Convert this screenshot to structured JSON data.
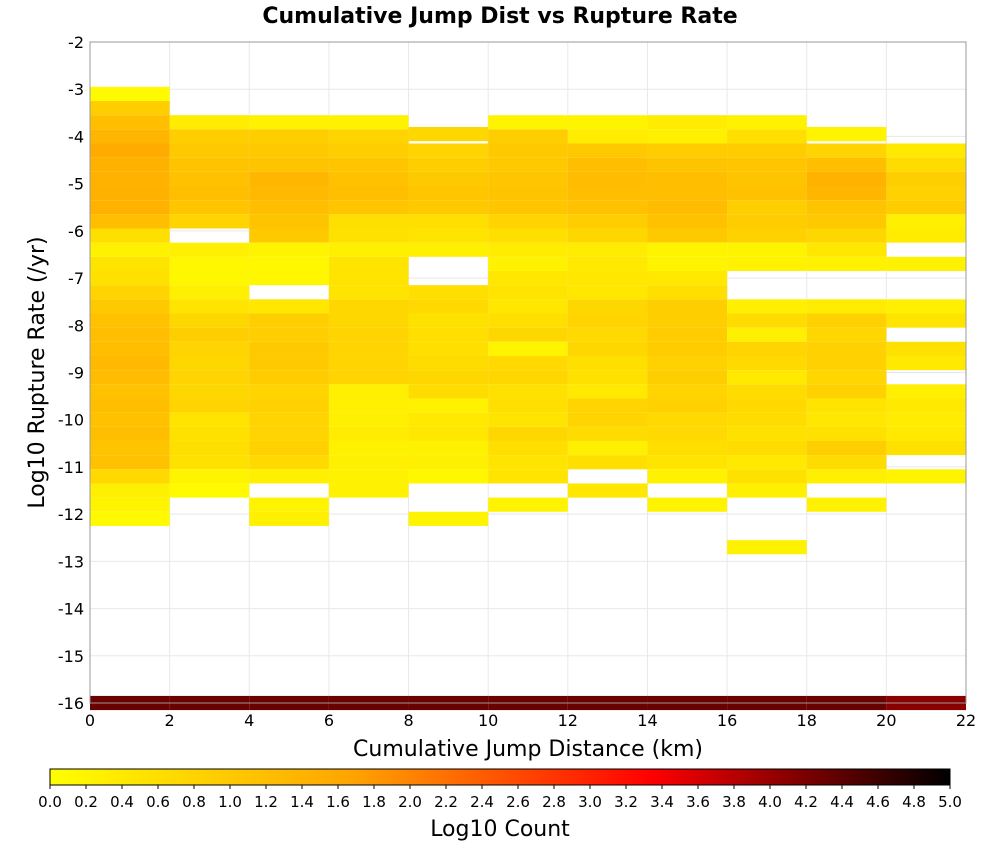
{
  "chart_data": {
    "type": "heatmap",
    "title": "Cumulative Jump Dist vs Rupture Rate",
    "xlabel": "Cumulative Jump Distance (km)",
    "ylabel": "Log10 Rupture Rate (/yr)",
    "xlim": [
      0,
      22
    ],
    "ylim": [
      -16,
      -2
    ],
    "x_ticks": [
      "0",
      "2",
      "4",
      "6",
      "8",
      "10",
      "12",
      "14",
      "16",
      "18",
      "20",
      "22"
    ],
    "y_ticks": [
      "-2",
      "-3",
      "-4",
      "-5",
      "-6",
      "-7",
      "-8",
      "-9",
      "-10",
      "-11",
      "-12",
      "-13",
      "-14",
      "-15",
      "-16"
    ],
    "x_bin_width": 2,
    "y_bin_height": 0.3,
    "grid": true,
    "colorbar": {
      "label": "Log10 Count",
      "range": [
        0,
        5
      ],
      "colors": [
        "#ffff00",
        "#ffa500",
        "#ff0000",
        "#000000"
      ],
      "ticks": [
        "0.0",
        "0.2",
        "0.4",
        "0.6",
        "0.8",
        "1.0",
        "1.2",
        "1.4",
        "1.6",
        "1.8",
        "2.0",
        "2.2",
        "2.4",
        "2.6",
        "2.8",
        "3.0",
        "3.2",
        "3.4",
        "3.6",
        "3.8",
        "4.0",
        "4.2",
        "4.4",
        "4.6",
        "4.8",
        "5.0"
      ]
    },
    "columns": [
      {
        "x": 0,
        "cells": [
          [
            -3.1,
            0.1
          ],
          [
            -3.4,
            0.9
          ],
          [
            -3.7,
            1.2
          ],
          [
            -4.0,
            1.35
          ],
          [
            -4.3,
            1.55
          ],
          [
            -4.6,
            1.45
          ],
          [
            -4.9,
            1.4
          ],
          [
            -5.2,
            1.45
          ],
          [
            -5.5,
            1.4
          ],
          [
            -5.8,
            1.2
          ],
          [
            -6.1,
            0.6
          ],
          [
            -6.4,
            0.25
          ],
          [
            -6.7,
            0.5
          ],
          [
            -7.0,
            0.55
          ],
          [
            -7.3,
            0.8
          ],
          [
            -7.6,
            1.0
          ],
          [
            -7.9,
            1.15
          ],
          [
            -8.2,
            1.2
          ],
          [
            -8.5,
            1.2
          ],
          [
            -8.8,
            1.3
          ],
          [
            -9.1,
            1.25
          ],
          [
            -9.4,
            1.15
          ],
          [
            -9.7,
            1.2
          ],
          [
            -10.0,
            1.15
          ],
          [
            -10.3,
            1.2
          ],
          [
            -10.6,
            1.1
          ],
          [
            -10.9,
            1.15
          ],
          [
            -11.2,
            0.7
          ],
          [
            -11.5,
            0.3
          ],
          [
            -11.8,
            0.2
          ],
          [
            -12.1,
            0.1
          ],
          [
            -16.0,
            4.3
          ]
        ]
      },
      {
        "x": 2,
        "cells": [
          [
            -3.7,
            0.35
          ],
          [
            -4.0,
            0.9
          ],
          [
            -4.3,
            1.0
          ],
          [
            -4.6,
            1.1
          ],
          [
            -4.9,
            1.15
          ],
          [
            -5.2,
            1.2
          ],
          [
            -5.5,
            1.05
          ],
          [
            -5.8,
            0.8
          ],
          [
            -6.4,
            0.3
          ],
          [
            -6.7,
            0.15
          ],
          [
            -7.0,
            0.15
          ],
          [
            -7.3,
            0.3
          ],
          [
            -7.6,
            0.5
          ],
          [
            -7.9,
            0.75
          ],
          [
            -8.2,
            0.9
          ],
          [
            -8.5,
            0.8
          ],
          [
            -8.8,
            0.75
          ],
          [
            -9.1,
            0.8
          ],
          [
            -9.4,
            0.75
          ],
          [
            -9.7,
            0.8
          ],
          [
            -10.0,
            0.5
          ],
          [
            -10.3,
            0.55
          ],
          [
            -10.6,
            0.6
          ],
          [
            -10.9,
            0.55
          ],
          [
            -11.2,
            0.2
          ],
          [
            -11.5,
            0.1
          ],
          [
            -16.0,
            4.3
          ]
        ]
      },
      {
        "x": 4,
        "cells": [
          [
            -3.7,
            0.25
          ],
          [
            -4.0,
            0.9
          ],
          [
            -4.3,
            1.0
          ],
          [
            -4.6,
            1.1
          ],
          [
            -4.9,
            1.35
          ],
          [
            -5.2,
            1.3
          ],
          [
            -5.5,
            1.2
          ],
          [
            -5.8,
            1.1
          ],
          [
            -6.1,
            1.0
          ],
          [
            -6.4,
            0.2
          ],
          [
            -6.7,
            0.15
          ],
          [
            -7.0,
            0.15
          ],
          [
            -7.6,
            0.45
          ],
          [
            -7.9,
            0.9
          ],
          [
            -8.2,
            0.9
          ],
          [
            -8.5,
            1.0
          ],
          [
            -8.8,
            1.0
          ],
          [
            -9.1,
            0.95
          ],
          [
            -9.4,
            0.8
          ],
          [
            -9.7,
            0.85
          ],
          [
            -10.0,
            0.8
          ],
          [
            -10.3,
            0.8
          ],
          [
            -10.6,
            0.85
          ],
          [
            -10.9,
            0.7
          ],
          [
            -11.2,
            0.3
          ],
          [
            -11.8,
            0.2
          ],
          [
            -12.1,
            0.3
          ],
          [
            -16.0,
            4.3
          ]
        ]
      },
      {
        "x": 6,
        "cells": [
          [
            -3.7,
            0.25
          ],
          [
            -4.0,
            0.8
          ],
          [
            -4.3,
            0.9
          ],
          [
            -4.6,
            1.05
          ],
          [
            -4.9,
            1.15
          ],
          [
            -5.2,
            1.2
          ],
          [
            -5.5,
            1.05
          ],
          [
            -5.8,
            0.6
          ],
          [
            -6.1,
            0.55
          ],
          [
            -6.4,
            0.3
          ],
          [
            -6.7,
            0.5
          ],
          [
            -7.0,
            0.5
          ],
          [
            -7.3,
            0.5
          ],
          [
            -7.6,
            0.75
          ],
          [
            -7.9,
            0.75
          ],
          [
            -8.2,
            0.8
          ],
          [
            -8.5,
            0.8
          ],
          [
            -8.8,
            0.8
          ],
          [
            -9.1,
            0.8
          ],
          [
            -9.4,
            0.3
          ],
          [
            -9.7,
            0.3
          ],
          [
            -10.0,
            0.3
          ],
          [
            -10.3,
            0.35
          ],
          [
            -10.6,
            0.25
          ],
          [
            -10.9,
            0.3
          ],
          [
            -11.2,
            0.25
          ],
          [
            -11.5,
            0.25
          ],
          [
            -16.0,
            4.3
          ]
        ]
      },
      {
        "x": 8,
        "cells": [
          [
            -3.95,
            0.75
          ],
          [
            -4.3,
            0.8
          ],
          [
            -4.6,
            0.9
          ],
          [
            -4.9,
            1.0
          ],
          [
            -5.2,
            1.05
          ],
          [
            -5.5,
            1.0
          ],
          [
            -5.8,
            0.6
          ],
          [
            -6.1,
            0.5
          ],
          [
            -6.4,
            0.3
          ],
          [
            -7.3,
            0.6
          ],
          [
            -7.6,
            0.7
          ],
          [
            -7.9,
            0.55
          ],
          [
            -8.2,
            0.6
          ],
          [
            -8.5,
            0.6
          ],
          [
            -8.8,
            0.65
          ],
          [
            -9.1,
            0.75
          ],
          [
            -9.4,
            0.65
          ],
          [
            -9.7,
            0.25
          ],
          [
            -10.0,
            0.4
          ],
          [
            -10.3,
            0.45
          ],
          [
            -10.6,
            0.25
          ],
          [
            -10.9,
            0.3
          ],
          [
            -11.2,
            0.15
          ],
          [
            -12.1,
            0.2
          ],
          [
            -16.0,
            4.3
          ]
        ]
      },
      {
        "x": 10,
        "cells": [
          [
            -3.7,
            0.2
          ],
          [
            -4.0,
            0.9
          ],
          [
            -4.3,
            1.0
          ],
          [
            -4.6,
            1.0
          ],
          [
            -4.9,
            1.05
          ],
          [
            -5.2,
            1.1
          ],
          [
            -5.5,
            1.05
          ],
          [
            -5.8,
            0.8
          ],
          [
            -6.1,
            0.6
          ],
          [
            -6.4,
            0.35
          ],
          [
            -6.7,
            0.25
          ],
          [
            -7.0,
            0.45
          ],
          [
            -7.3,
            0.5
          ],
          [
            -7.6,
            0.45
          ],
          [
            -7.9,
            0.6
          ],
          [
            -8.2,
            0.75
          ],
          [
            -8.5,
            0.2
          ],
          [
            -8.8,
            0.7
          ],
          [
            -9.1,
            0.75
          ],
          [
            -9.4,
            0.55
          ],
          [
            -9.7,
            0.6
          ],
          [
            -10.0,
            0.5
          ],
          [
            -10.3,
            0.75
          ],
          [
            -10.6,
            0.6
          ],
          [
            -10.9,
            0.5
          ],
          [
            -11.2,
            0.5
          ],
          [
            -11.8,
            0.2
          ],
          [
            -16.0,
            4.3
          ]
        ]
      },
      {
        "x": 12,
        "cells": [
          [
            -3.7,
            0.2
          ],
          [
            -4.0,
            0.35
          ],
          [
            -4.3,
            1.0
          ],
          [
            -4.6,
            1.2
          ],
          [
            -4.9,
            1.25
          ],
          [
            -5.2,
            1.2
          ],
          [
            -5.5,
            1.15
          ],
          [
            -5.8,
            0.9
          ],
          [
            -6.1,
            0.75
          ],
          [
            -6.4,
            0.35
          ],
          [
            -6.7,
            0.4
          ],
          [
            -7.0,
            0.45
          ],
          [
            -7.3,
            0.45
          ],
          [
            -7.6,
            0.75
          ],
          [
            -7.9,
            0.8
          ],
          [
            -8.2,
            0.7
          ],
          [
            -8.5,
            0.75
          ],
          [
            -8.8,
            0.6
          ],
          [
            -9.1,
            0.55
          ],
          [
            -9.4,
            0.4
          ],
          [
            -9.7,
            0.8
          ],
          [
            -10.0,
            0.8
          ],
          [
            -10.3,
            0.65
          ],
          [
            -10.6,
            0.3
          ],
          [
            -10.9,
            0.6
          ],
          [
            -11.5,
            0.45
          ],
          [
            -16.0,
            4.3
          ]
        ]
      },
      {
        "x": 14,
        "cells": [
          [
            -3.7,
            0.35
          ],
          [
            -4.0,
            0.3
          ],
          [
            -4.3,
            0.95
          ],
          [
            -4.6,
            1.1
          ],
          [
            -4.9,
            1.2
          ],
          [
            -5.2,
            1.2
          ],
          [
            -5.5,
            1.25
          ],
          [
            -5.8,
            1.15
          ],
          [
            -6.1,
            1.0
          ],
          [
            -6.4,
            0.2
          ],
          [
            -6.7,
            0.2
          ],
          [
            -7.0,
            0.4
          ],
          [
            -7.3,
            0.6
          ],
          [
            -7.6,
            0.9
          ],
          [
            -7.9,
            0.9
          ],
          [
            -8.2,
            0.95
          ],
          [
            -8.5,
            0.95
          ],
          [
            -8.8,
            0.85
          ],
          [
            -9.1,
            0.9
          ],
          [
            -9.4,
            0.8
          ],
          [
            -9.7,
            0.85
          ],
          [
            -10.0,
            0.7
          ],
          [
            -10.3,
            0.7
          ],
          [
            -10.6,
            0.6
          ],
          [
            -10.9,
            0.5
          ],
          [
            -11.2,
            0.25
          ],
          [
            -11.8,
            0.2
          ],
          [
            -16.0,
            4.3
          ]
        ]
      },
      {
        "x": 16,
        "cells": [
          [
            -3.7,
            0.25
          ],
          [
            -4.0,
            0.6
          ],
          [
            -4.3,
            0.95
          ],
          [
            -4.6,
            1.05
          ],
          [
            -4.9,
            1.1
          ],
          [
            -5.2,
            1.15
          ],
          [
            -5.5,
            0.9
          ],
          [
            -5.8,
            0.95
          ],
          [
            -6.1,
            0.85
          ],
          [
            -6.4,
            0.2
          ],
          [
            -6.7,
            0.25
          ],
          [
            -7.6,
            0.3
          ],
          [
            -7.9,
            0.65
          ],
          [
            -8.2,
            0.3
          ],
          [
            -8.5,
            0.8
          ],
          [
            -8.8,
            0.7
          ],
          [
            -9.1,
            0.4
          ],
          [
            -9.4,
            0.65
          ],
          [
            -9.7,
            0.7
          ],
          [
            -10.0,
            0.65
          ],
          [
            -10.3,
            0.55
          ],
          [
            -10.6,
            0.65
          ],
          [
            -10.9,
            0.4
          ],
          [
            -11.2,
            0.55
          ],
          [
            -11.5,
            0.3
          ],
          [
            -12.7,
            0.25
          ],
          [
            -16.0,
            4.3
          ]
        ]
      },
      {
        "x": 18,
        "cells": [
          [
            -3.95,
            0.2
          ],
          [
            -4.3,
            0.8
          ],
          [
            -4.6,
            1.2
          ],
          [
            -4.9,
            1.4
          ],
          [
            -5.2,
            1.35
          ],
          [
            -5.5,
            1.1
          ],
          [
            -5.8,
            1.0
          ],
          [
            -6.1,
            0.75
          ],
          [
            -6.4,
            0.45
          ],
          [
            -6.7,
            0.25
          ],
          [
            -7.6,
            0.35
          ],
          [
            -7.9,
            0.85
          ],
          [
            -8.2,
            0.75
          ],
          [
            -8.5,
            0.85
          ],
          [
            -8.8,
            0.85
          ],
          [
            -9.1,
            0.75
          ],
          [
            -9.4,
            0.85
          ],
          [
            -9.7,
            0.5
          ],
          [
            -10.0,
            0.45
          ],
          [
            -10.3,
            0.55
          ],
          [
            -10.6,
            0.9
          ],
          [
            -10.9,
            0.65
          ],
          [
            -11.2,
            0.3
          ],
          [
            -11.8,
            0.25
          ],
          [
            -16.0,
            4.3
          ]
        ]
      },
      {
        "x": 20,
        "cells": [
          [
            -4.3,
            0.4
          ],
          [
            -4.6,
            0.65
          ],
          [
            -4.9,
            0.9
          ],
          [
            -5.2,
            0.85
          ],
          [
            -5.5,
            0.95
          ],
          [
            -5.8,
            0.3
          ],
          [
            -6.1,
            0.35
          ],
          [
            -6.7,
            0.25
          ],
          [
            -7.6,
            0.3
          ],
          [
            -7.9,
            0.5
          ],
          [
            -8.5,
            0.55
          ],
          [
            -8.8,
            0.4
          ],
          [
            -9.4,
            0.3
          ],
          [
            -9.7,
            0.4
          ],
          [
            -10.0,
            0.35
          ],
          [
            -10.3,
            0.4
          ],
          [
            -10.6,
            0.55
          ],
          [
            -11.2,
            0.2
          ],
          [
            -16.0,
            4.1
          ]
        ]
      }
    ]
  }
}
